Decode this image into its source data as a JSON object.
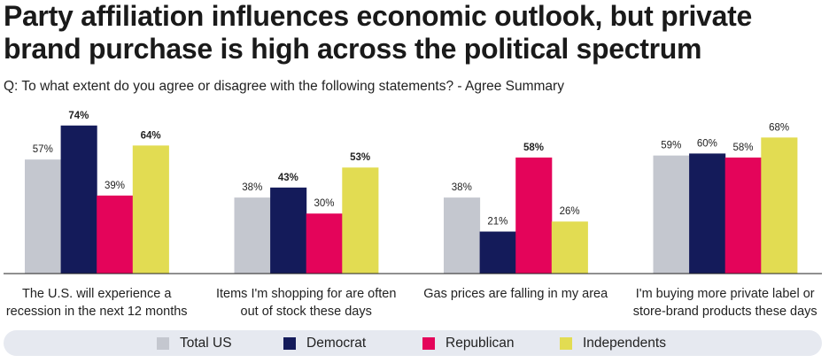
{
  "chart_data": {
    "type": "bar",
    "title": "Party affiliation influences economic outlook, but private brand purchase is high across the political spectrum",
    "subtitle": "Q: To what extent do you agree or disagree with the following statements? - Agree Summary",
    "categories": [
      [
        "The U.S. will experience a",
        "recession in the next 12 months"
      ],
      [
        "Items I'm shopping for are often",
        "out of stock these days"
      ],
      [
        "Gas prices are falling in my area"
      ],
      [
        "I'm buying more private label or",
        "store-brand products these days"
      ]
    ],
    "series": [
      {
        "name": "Total US",
        "color": "#c4c7cf",
        "values": [
          57,
          38,
          38,
          59
        ],
        "bold": [
          false,
          false,
          false,
          false
        ]
      },
      {
        "name": "Democrat",
        "color": "#141b5a",
        "values": [
          74,
          43,
          21,
          60
        ],
        "bold": [
          true,
          true,
          false,
          false
        ]
      },
      {
        "name": "Republican",
        "color": "#e4045a",
        "values": [
          39,
          30,
          58,
          58
        ],
        "bold": [
          false,
          false,
          true,
          false
        ]
      },
      {
        "name": "Independents",
        "color": "#e2dc52",
        "values": [
          64,
          53,
          26,
          68
        ],
        "bold": [
          true,
          true,
          false,
          false
        ]
      }
    ],
    "value_suffix": "%",
    "ylim": [
      0,
      74
    ],
    "grid": false,
    "legend_position": "bottom"
  }
}
